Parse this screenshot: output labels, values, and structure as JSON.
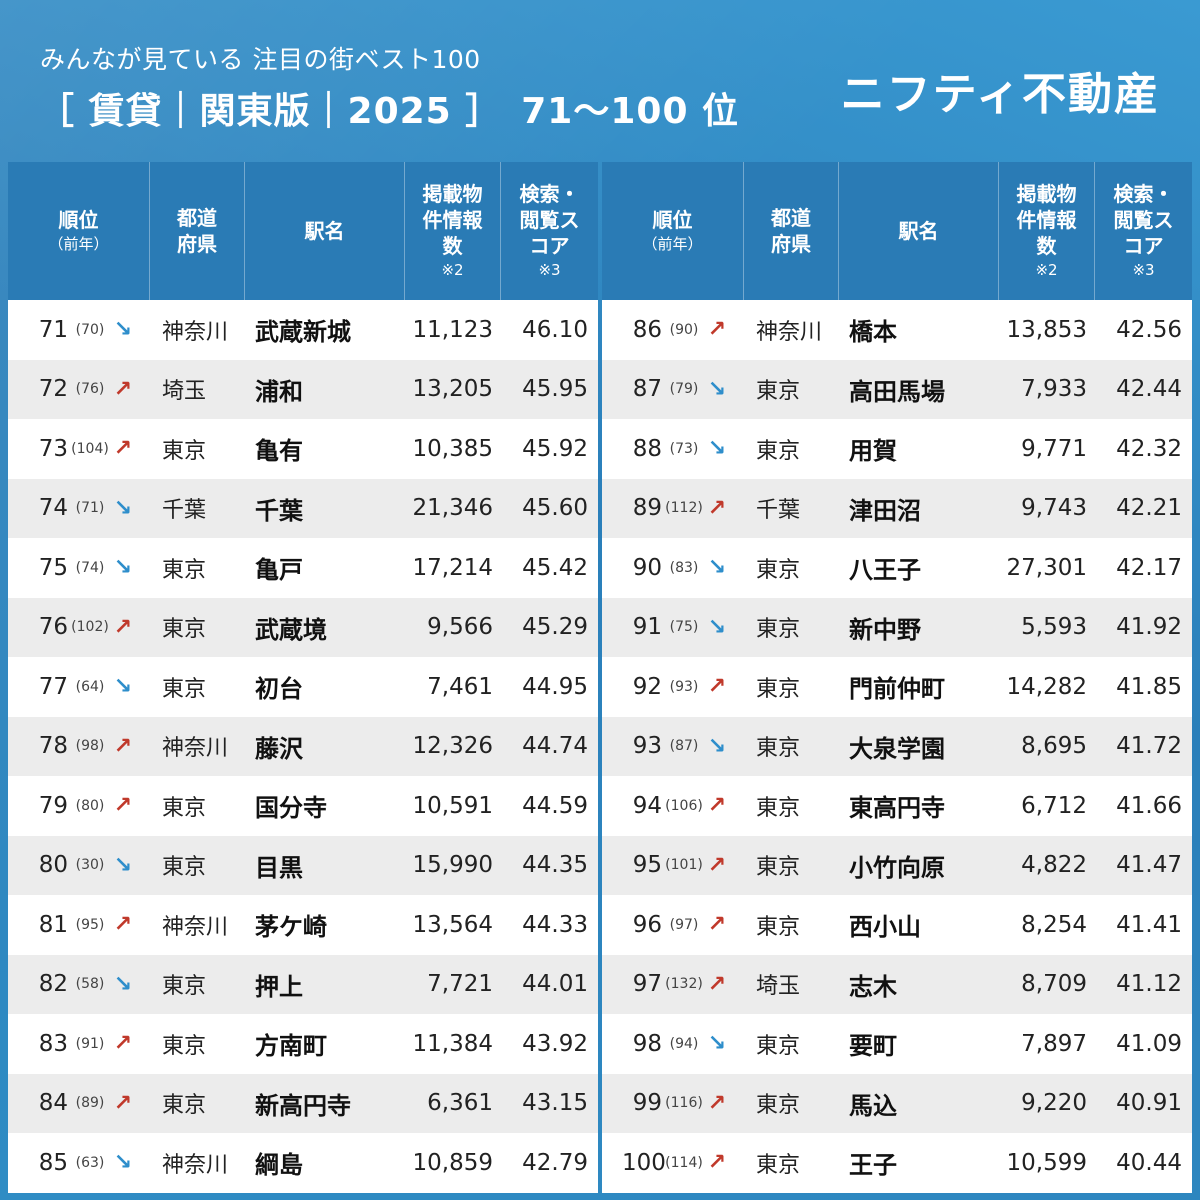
{
  "header": {
    "subtitle": "みんなが見ている 注目の街ベスト100",
    "title": "［ 賃貸｜関東版｜2025 ］　71〜100 位",
    "brand": "ニフティ不動産"
  },
  "columns": {
    "rank": "順位",
    "rank_sub": "（前年）",
    "pref": "都道府県",
    "station": "駅名",
    "count": "掲載物件情報数",
    "count_note": "※2",
    "score": "検索・閲覧スコア",
    "score_note": "※3"
  },
  "colors": {
    "up": "#c0392b",
    "down": "#2e8ecb",
    "header": "#2a7bb5"
  },
  "left_rows": [
    {
      "rank": "71",
      "prev": "(70)",
      "trend": "down",
      "pref": "神奈川",
      "station": "武蔵新城",
      "count": "11,123",
      "score": "46.10"
    },
    {
      "rank": "72",
      "prev": "(76)",
      "trend": "up",
      "pref": "埼玉",
      "station": "浦和",
      "count": "13,205",
      "score": "45.95"
    },
    {
      "rank": "73",
      "prev": "(104)",
      "trend": "up",
      "pref": "東京",
      "station": "亀有",
      "count": "10,385",
      "score": "45.92"
    },
    {
      "rank": "74",
      "prev": "(71)",
      "trend": "down",
      "pref": "千葉",
      "station": "千葉",
      "count": "21,346",
      "score": "45.60"
    },
    {
      "rank": "75",
      "prev": "(74)",
      "trend": "down",
      "pref": "東京",
      "station": "亀戸",
      "count": "17,214",
      "score": "45.42"
    },
    {
      "rank": "76",
      "prev": "(102)",
      "trend": "up",
      "pref": "東京",
      "station": "武蔵境",
      "count": "9,566",
      "score": "45.29"
    },
    {
      "rank": "77",
      "prev": "(64)",
      "trend": "down",
      "pref": "東京",
      "station": "初台",
      "count": "7,461",
      "score": "44.95"
    },
    {
      "rank": "78",
      "prev": "(98)",
      "trend": "up",
      "pref": "神奈川",
      "station": "藤沢",
      "count": "12,326",
      "score": "44.74"
    },
    {
      "rank": "79",
      "prev": "(80)",
      "trend": "up",
      "pref": "東京",
      "station": "国分寺",
      "count": "10,591",
      "score": "44.59"
    },
    {
      "rank": "80",
      "prev": "(30)",
      "trend": "down",
      "pref": "東京",
      "station": "目黒",
      "count": "15,990",
      "score": "44.35"
    },
    {
      "rank": "81",
      "prev": "(95)",
      "trend": "up",
      "pref": "神奈川",
      "station": "茅ケ崎",
      "count": "13,564",
      "score": "44.33"
    },
    {
      "rank": "82",
      "prev": "(58)",
      "trend": "down",
      "pref": "東京",
      "station": "押上",
      "count": "7,721",
      "score": "44.01"
    },
    {
      "rank": "83",
      "prev": "(91)",
      "trend": "up",
      "pref": "東京",
      "station": "方南町",
      "count": "11,384",
      "score": "43.92"
    },
    {
      "rank": "84",
      "prev": "(89)",
      "trend": "up",
      "pref": "東京",
      "station": "新高円寺",
      "count": "6,361",
      "score": "43.15"
    },
    {
      "rank": "85",
      "prev": "(63)",
      "trend": "down",
      "pref": "神奈川",
      "station": "綱島",
      "count": "10,859",
      "score": "42.79"
    }
  ],
  "right_rows": [
    {
      "rank": "86",
      "prev": "(90)",
      "trend": "up",
      "pref": "神奈川",
      "station": "橋本",
      "count": "13,853",
      "score": "42.56"
    },
    {
      "rank": "87",
      "prev": "(79)",
      "trend": "down",
      "pref": "東京",
      "station": "高田馬場",
      "count": "7,933",
      "score": "42.44"
    },
    {
      "rank": "88",
      "prev": "(73)",
      "trend": "down",
      "pref": "東京",
      "station": "用賀",
      "count": "9,771",
      "score": "42.32"
    },
    {
      "rank": "89",
      "prev": "(112)",
      "trend": "up",
      "pref": "千葉",
      "station": "津田沼",
      "count": "9,743",
      "score": "42.21"
    },
    {
      "rank": "90",
      "prev": "(83)",
      "trend": "down",
      "pref": "東京",
      "station": "八王子",
      "count": "27,301",
      "score": "42.17"
    },
    {
      "rank": "91",
      "prev": "(75)",
      "trend": "down",
      "pref": "東京",
      "station": "新中野",
      "count": "5,593",
      "score": "41.92"
    },
    {
      "rank": "92",
      "prev": "(93)",
      "trend": "up",
      "pref": "東京",
      "station": "門前仲町",
      "count": "14,282",
      "score": "41.85"
    },
    {
      "rank": "93",
      "prev": "(87)",
      "trend": "down",
      "pref": "東京",
      "station": "大泉学園",
      "count": "8,695",
      "score": "41.72"
    },
    {
      "rank": "94",
      "prev": "(106)",
      "trend": "up",
      "pref": "東京",
      "station": "東高円寺",
      "count": "6,712",
      "score": "41.66"
    },
    {
      "rank": "95",
      "prev": "(101)",
      "trend": "up",
      "pref": "東京",
      "station": "小竹向原",
      "count": "4,822",
      "score": "41.47"
    },
    {
      "rank": "96",
      "prev": "(97)",
      "trend": "up",
      "pref": "東京",
      "station": "西小山",
      "count": "8,254",
      "score": "41.41"
    },
    {
      "rank": "97",
      "prev": "(132)",
      "trend": "up",
      "pref": "埼玉",
      "station": "志木",
      "count": "8,709",
      "score": "41.12"
    },
    {
      "rank": "98",
      "prev": "(94)",
      "trend": "down",
      "pref": "東京",
      "station": "要町",
      "count": "7,897",
      "score": "41.09"
    },
    {
      "rank": "99",
      "prev": "(116)",
      "trend": "up",
      "pref": "東京",
      "station": "馬込",
      "count": "9,220",
      "score": "40.91"
    },
    {
      "rank": "100",
      "prev": "(114)",
      "trend": "up",
      "pref": "東京",
      "station": "王子",
      "count": "10,599",
      "score": "40.44"
    }
  ]
}
